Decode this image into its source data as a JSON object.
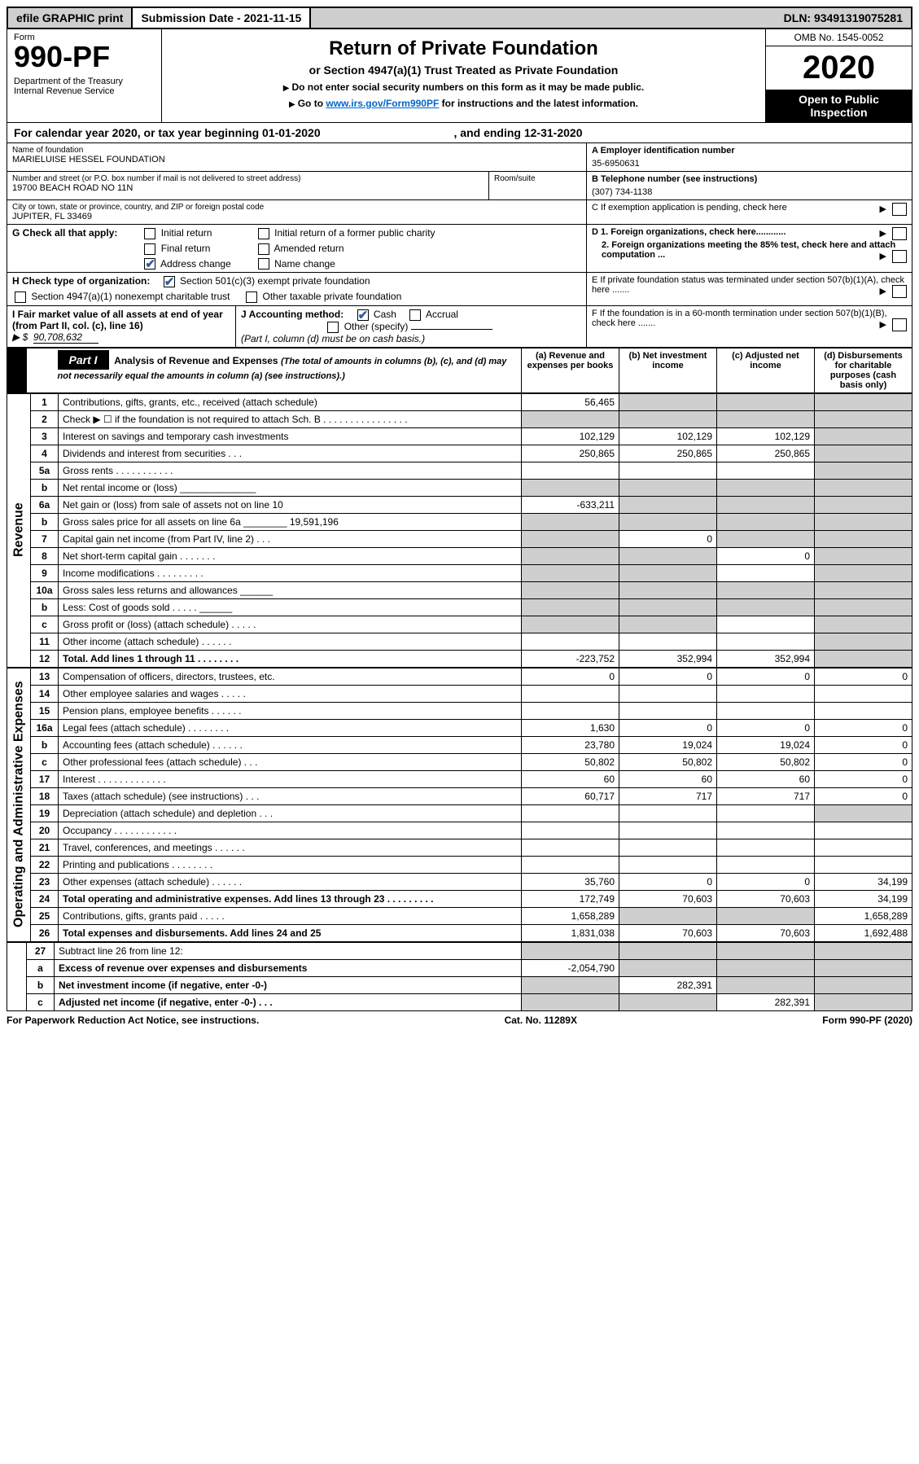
{
  "topbar": {
    "efile": "efile GRAPHIC print",
    "submission": "Submission Date - 2021-11-15",
    "dln": "DLN: 93491319075281"
  },
  "header": {
    "form_word": "Form",
    "form_no": "990-PF",
    "dept": "Department of the Treasury",
    "irs": "Internal Revenue Service",
    "title": "Return of Private Foundation",
    "subtitle": "or Section 4947(a)(1) Trust Treated as Private Foundation",
    "inst1": "Do not enter social security numbers on this form as it may be made public.",
    "inst2_a": "Go to ",
    "inst2_link": "www.irs.gov/Form990PF",
    "inst2_b": " for instructions and the latest information.",
    "omb": "OMB No. 1545-0052",
    "year": "2020",
    "open": "Open to Public Inspection"
  },
  "calyear": {
    "a": "For calendar year 2020, or tax year beginning 01-01-2020",
    "b": ", and ending 12-31-2020"
  },
  "entity": {
    "name_lbl": "Name of foundation",
    "name": "MARIELUISE HESSEL FOUNDATION",
    "addr_lbl": "Number and street (or P.O. box number if mail is not delivered to street address)",
    "addr": "19700 BEACH ROAD NO 11N",
    "room_lbl": "Room/suite",
    "city_lbl": "City or town, state or province, country, and ZIP or foreign postal code",
    "city": "JUPITER, FL  33469",
    "ein_lbl": "A Employer identification number",
    "ein": "35-6950631",
    "tel_lbl": "B Telephone number (see instructions)",
    "tel": "(307) 734-1138",
    "c": "C If exemption application is pending, check here",
    "d1": "D 1. Foreign organizations, check here............",
    "d2": "2. Foreign organizations meeting the 85% test, check here and attach computation ...",
    "e": "E  If private foundation status was terminated under section 507(b)(1)(A), check here .......",
    "f": "F  If the foundation is in a 60-month termination under section 507(b)(1)(B), check here ......."
  },
  "g": {
    "lbl": "G Check all that apply:",
    "initial": "Initial return",
    "initial_former": "Initial return of a former public charity",
    "final": "Final return",
    "amended": "Amended return",
    "address": "Address change",
    "name": "Name change"
  },
  "h": {
    "lbl": "H Check type of organization:",
    "c3": "Section 501(c)(3) exempt private foundation",
    "trust": "Section 4947(a)(1) nonexempt charitable trust",
    "other": "Other taxable private foundation"
  },
  "i": {
    "lbl": "I Fair market value of all assets at end of year (from Part II, col. (c), line 16)",
    "val": "90,708,632"
  },
  "j": {
    "lbl": "J Accounting method:",
    "cash": "Cash",
    "accrual": "Accrual",
    "other": "Other (specify)",
    "note": "(Part I, column (d) must be on cash basis.)"
  },
  "part1": {
    "label": "Part I",
    "title": "Analysis of Revenue and Expenses",
    "note": "(The total of amounts in columns (b), (c), and (d) may not necessarily equal the amounts in column (a) (see instructions).)",
    "col_a": "(a)   Revenue and expenses per books",
    "col_b": "(b)   Net investment income",
    "col_c": "(c)   Adjusted net income",
    "col_d": "(d)   Disbursements for charitable purposes (cash basis only)"
  },
  "revenue_label": "Revenue",
  "expenses_label": "Operating and Administrative Expenses",
  "rows": [
    {
      "n": "1",
      "d": "Contributions, gifts, grants, etc., received (attach schedule)",
      "a": "56,465",
      "b": "",
      "c": "",
      "dcol": "",
      "bgrey": true,
      "cgrey": true,
      "dgrey": true
    },
    {
      "n": "2",
      "d": "Check ▶ ☐ if the foundation is not required to attach Sch. B   .  .  .  .  .  .  .  .  .  .  .  .  .  .  .  .",
      "a": "",
      "b": "",
      "c": "",
      "dcol": "",
      "agrey": true,
      "bgrey": true,
      "cgrey": true,
      "dgrey": true
    },
    {
      "n": "3",
      "d": "Interest on savings and temporary cash investments",
      "a": "102,129",
      "b": "102,129",
      "c": "102,129",
      "dcol": "",
      "dgrey": true
    },
    {
      "n": "4",
      "d": "Dividends and interest from securities   .   .   .",
      "a": "250,865",
      "b": "250,865",
      "c": "250,865",
      "dcol": "",
      "dgrey": true
    },
    {
      "n": "5a",
      "d": "Gross rents   .   .   .   .   .   .   .   .   .   .   .",
      "a": "",
      "b": "",
      "c": "",
      "dcol": "",
      "dgrey": true
    },
    {
      "n": "b",
      "d": "Net rental income or (loss)   ______________",
      "a": "",
      "b": "",
      "c": "",
      "dcol": "",
      "agrey": true,
      "bgrey": true,
      "cgrey": true,
      "dgrey": true
    },
    {
      "n": "6a",
      "d": "Net gain or (loss) from sale of assets not on line 10",
      "a": "-633,211",
      "b": "",
      "c": "",
      "dcol": "",
      "bgrey": true,
      "cgrey": true,
      "dgrey": true
    },
    {
      "n": "b",
      "d": "Gross sales price for all assets on line 6a ________ 19,591,196",
      "a": "",
      "b": "",
      "c": "",
      "dcol": "",
      "agrey": true,
      "bgrey": true,
      "cgrey": true,
      "dgrey": true
    },
    {
      "n": "7",
      "d": "Capital gain net income (from Part IV, line 2)   .   .   .",
      "a": "",
      "b": "0",
      "c": "",
      "dcol": "",
      "agrey": true,
      "cgrey": true,
      "dgrey": true
    },
    {
      "n": "8",
      "d": "Net short-term capital gain   .   .   .   .   .   .   .",
      "a": "",
      "b": "",
      "c": "0",
      "dcol": "",
      "agrey": true,
      "bgrey": true,
      "dgrey": true
    },
    {
      "n": "9",
      "d": "Income modifications   .   .   .   .   .   .   .   .   .",
      "a": "",
      "b": "",
      "c": "",
      "dcol": "",
      "agrey": true,
      "bgrey": true,
      "dgrey": true
    },
    {
      "n": "10a",
      "d": "Gross sales less returns and allowances   ______",
      "a": "",
      "b": "",
      "c": "",
      "dcol": "",
      "agrey": true,
      "bgrey": true,
      "cgrey": true,
      "dgrey": true
    },
    {
      "n": "b",
      "d": "Less: Cost of goods sold   .   .   .   .   .   ______",
      "a": "",
      "b": "",
      "c": "",
      "dcol": "",
      "agrey": true,
      "bgrey": true,
      "cgrey": true,
      "dgrey": true
    },
    {
      "n": "c",
      "d": "Gross profit or (loss) (attach schedule)   .   .   .   .   .",
      "a": "",
      "b": "",
      "c": "",
      "dcol": "",
      "agrey": true,
      "bgrey": true,
      "dgrey": true
    },
    {
      "n": "11",
      "d": "Other income (attach schedule)   .   .   .   .   .   .",
      "a": "",
      "b": "",
      "c": "",
      "dcol": "",
      "dgrey": true
    },
    {
      "n": "12",
      "d": "Total. Add lines 1 through 11   .   .   .   .   .   .   .   .",
      "a": "-223,752",
      "b": "352,994",
      "c": "352,994",
      "dcol": "",
      "dgrey": true,
      "bold": true
    }
  ],
  "exp_rows": [
    {
      "n": "13",
      "d": "Compensation of officers, directors, trustees, etc.",
      "a": "0",
      "b": "0",
      "c": "0",
      "dcol": "0"
    },
    {
      "n": "14",
      "d": "Other employee salaries and wages   .   .   .   .   .",
      "a": "",
      "b": "",
      "c": "",
      "dcol": ""
    },
    {
      "n": "15",
      "d": "Pension plans, employee benefits   .   .   .   .   .   .",
      "a": "",
      "b": "",
      "c": "",
      "dcol": ""
    },
    {
      "n": "16a",
      "d": "Legal fees (attach schedule)   .   .   .   .   .   .   .   .",
      "a": "1,630",
      "b": "0",
      "c": "0",
      "dcol": "0"
    },
    {
      "n": "b",
      "d": "Accounting fees (attach schedule)   .   .   .   .   .   .",
      "a": "23,780",
      "b": "19,024",
      "c": "19,024",
      "dcol": "0"
    },
    {
      "n": "c",
      "d": "Other professional fees (attach schedule)   .   .   .",
      "a": "50,802",
      "b": "50,802",
      "c": "50,802",
      "dcol": "0"
    },
    {
      "n": "17",
      "d": "Interest   .   .   .   .   .   .   .   .   .   .   .   .   .",
      "a": "60",
      "b": "60",
      "c": "60",
      "dcol": "0"
    },
    {
      "n": "18",
      "d": "Taxes (attach schedule) (see instructions)   .   .   .",
      "a": "60,717",
      "b": "717",
      "c": "717",
      "dcol": "0"
    },
    {
      "n": "19",
      "d": "Depreciation (attach schedule) and depletion   .   .   .",
      "a": "",
      "b": "",
      "c": "",
      "dcol": "",
      "dgrey": true
    },
    {
      "n": "20",
      "d": "Occupancy   .   .   .   .   .   .   .   .   .   .   .   .",
      "a": "",
      "b": "",
      "c": "",
      "dcol": ""
    },
    {
      "n": "21",
      "d": "Travel, conferences, and meetings   .   .   .   .   .   .",
      "a": "",
      "b": "",
      "c": "",
      "dcol": ""
    },
    {
      "n": "22",
      "d": "Printing and publications   .   .   .   .   .   .   .   .",
      "a": "",
      "b": "",
      "c": "",
      "dcol": ""
    },
    {
      "n": "23",
      "d": "Other expenses (attach schedule)   .   .   .   .   .   .",
      "a": "35,760",
      "b": "0",
      "c": "0",
      "dcol": "34,199"
    },
    {
      "n": "24",
      "d": "Total operating and administrative expenses. Add lines 13 through 23   .   .   .   .   .   .   .   .   .",
      "a": "172,749",
      "b": "70,603",
      "c": "70,603",
      "dcol": "34,199",
      "bold": true
    },
    {
      "n": "25",
      "d": "Contributions, gifts, grants paid   .   .   .   .   .",
      "a": "1,658,289",
      "b": "",
      "c": "",
      "dcol": "1,658,289",
      "bgrey": true,
      "cgrey": true
    },
    {
      "n": "26",
      "d": "Total expenses and disbursements. Add lines 24 and 25",
      "a": "1,831,038",
      "b": "70,603",
      "c": "70,603",
      "dcol": "1,692,488",
      "bold": true
    }
  ],
  "bottom_rows": [
    {
      "n": "27",
      "d": "Subtract line 26 from line 12:",
      "a": "",
      "b": "",
      "c": "",
      "dcol": "",
      "agrey": true,
      "bgrey": true,
      "cgrey": true,
      "dgrey": true
    },
    {
      "n": "a",
      "d": "Excess of revenue over expenses and disbursements",
      "a": "-2,054,790",
      "b": "",
      "c": "",
      "dcol": "",
      "bgrey": true,
      "cgrey": true,
      "dgrey": true,
      "bold": true
    },
    {
      "n": "b",
      "d": "Net investment income (if negative, enter -0-)",
      "a": "",
      "b": "282,391",
      "c": "",
      "dcol": "",
      "agrey": true,
      "cgrey": true,
      "dgrey": true,
      "bold": true
    },
    {
      "n": "c",
      "d": "Adjusted net income (if negative, enter -0-)   .   .   .",
      "a": "",
      "b": "",
      "c": "282,391",
      "dcol": "",
      "agrey": true,
      "bgrey": true,
      "dgrey": true,
      "bold": true
    }
  ],
  "footer": {
    "pra": "For Paperwork Reduction Act Notice, see instructions.",
    "cat": "Cat. No. 11289X",
    "form": "Form 990-PF (2020)"
  }
}
